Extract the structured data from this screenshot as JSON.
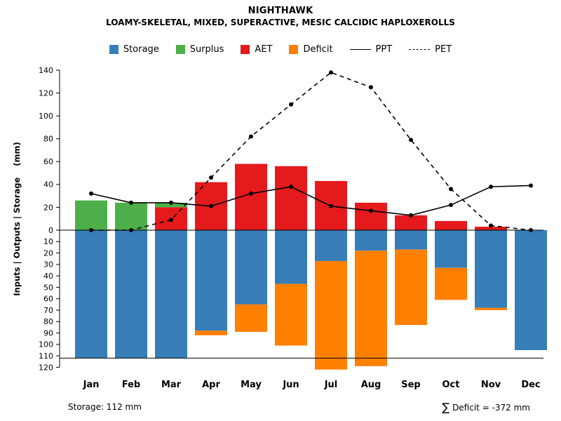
{
  "title": "NIGHTHAWK",
  "subtitle": "LOAMY-SKELETAL, MIXED, SUPERACTIVE, MESIC CALCIDIC HAPLOXEROLLS",
  "ylabel": "Inputs | Outputs | Storage    (mm)",
  "footer": {
    "storage_note": "Storage: 112 mm",
    "deficit_sigma": "∑",
    "deficit_note": "Deficit = -372 mm"
  },
  "legend": [
    {
      "label": "Storage",
      "swatch": "square",
      "color": "#377EB8"
    },
    {
      "label": "Surplus",
      "swatch": "square",
      "color": "#4DAF4A"
    },
    {
      "label": "AET",
      "swatch": "square",
      "color": "#E41A1C"
    },
    {
      "label": "Deficit",
      "swatch": "square",
      "color": "#FF7F00"
    },
    {
      "label": "PPT",
      "swatch": "line-solid",
      "color": "#000000"
    },
    {
      "label": "PET",
      "swatch": "line-dashed",
      "color": "#000000"
    }
  ],
  "chart_data": {
    "type": "bar",
    "title": "NIGHTHAWK",
    "subtitle": "LOAMY-SKELETAL, MIXED, SUPERACTIVE, MESIC CALCIDIC HAPLOXEROLLS",
    "ylabel": "Inputs | Outputs | Storage (mm)",
    "categories": [
      "Jan",
      "Feb",
      "Mar",
      "Apr",
      "May",
      "Jun",
      "Jul",
      "Aug",
      "Sep",
      "Oct",
      "Nov",
      "Dec"
    ],
    "series": [
      {
        "name": "AET",
        "role": "bar-up",
        "color": "#E41A1C",
        "values": [
          0,
          0,
          20,
          42,
          58,
          56,
          43,
          24,
          13,
          8,
          3,
          0
        ]
      },
      {
        "name": "Surplus",
        "role": "bar-up-stacked",
        "color": "#4DAF4A",
        "values": [
          26,
          24,
          4,
          0,
          0,
          0,
          0,
          0,
          0,
          0,
          0,
          0
        ]
      },
      {
        "name": "Storage",
        "role": "bar-down",
        "color": "#377EB8",
        "values": [
          112,
          112,
          112,
          88,
          65,
          47,
          27,
          18,
          17,
          33,
          68,
          105
        ]
      },
      {
        "name": "Deficit",
        "role": "bar-down-stacked",
        "color": "#FF7F00",
        "values": [
          0,
          0,
          0,
          4,
          24,
          54,
          95,
          101,
          66,
          28,
          2,
          0
        ]
      },
      {
        "name": "PPT",
        "role": "line-solid",
        "color": "#000000",
        "values": [
          32,
          24,
          24,
          21,
          32,
          38,
          21,
          17,
          13,
          22,
          38,
          39
        ]
      },
      {
        "name": "PET",
        "role": "line-dashed",
        "color": "#000000",
        "values": [
          0,
          0,
          9,
          46,
          82,
          110,
          138,
          125,
          79,
          36,
          4,
          0
        ]
      }
    ],
    "axis": {
      "upper_max": 140,
      "upper_step": 20,
      "lower_max": 120,
      "lower_step": 10,
      "storage_capacity_line": 112
    },
    "grid": false,
    "legend_position": "top",
    "notes": {
      "storage": "Storage: 112 mm",
      "deficit_total": "∑ Deficit = -372 mm"
    }
  }
}
